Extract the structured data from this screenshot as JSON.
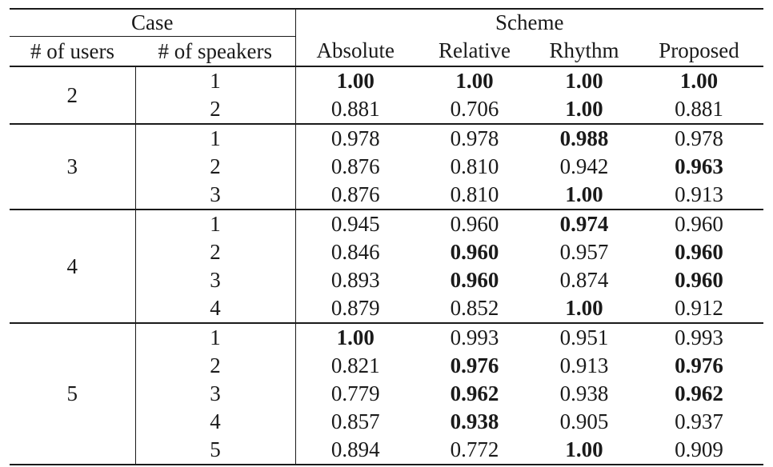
{
  "header": {
    "case_label": "Case",
    "scheme_label": "Scheme",
    "users_label": "# of users",
    "speakers_label": "# of speakers",
    "schemes": [
      "Absolute",
      "Relative",
      "Rhythm",
      "Proposed"
    ]
  },
  "groups": [
    {
      "users": "2",
      "rows": [
        {
          "speakers": "1",
          "values": [
            "1.00",
            "1.00",
            "1.00",
            "1.00"
          ],
          "bold": [
            true,
            true,
            true,
            true
          ]
        },
        {
          "speakers": "2",
          "values": [
            "0.881",
            "0.706",
            "1.00",
            "0.881"
          ],
          "bold": [
            false,
            false,
            true,
            false
          ]
        }
      ]
    },
    {
      "users": "3",
      "rows": [
        {
          "speakers": "1",
          "values": [
            "0.978",
            "0.978",
            "0.988",
            "0.978"
          ],
          "bold": [
            false,
            false,
            true,
            false
          ]
        },
        {
          "speakers": "2",
          "values": [
            "0.876",
            "0.810",
            "0.942",
            "0.963"
          ],
          "bold": [
            false,
            false,
            false,
            true
          ]
        },
        {
          "speakers": "3",
          "values": [
            "0.876",
            "0.810",
            "1.00",
            "0.913"
          ],
          "bold": [
            false,
            false,
            true,
            false
          ]
        }
      ]
    },
    {
      "users": "4",
      "rows": [
        {
          "speakers": "1",
          "values": [
            "0.945",
            "0.960",
            "0.974",
            "0.960"
          ],
          "bold": [
            false,
            false,
            true,
            false
          ]
        },
        {
          "speakers": "2",
          "values": [
            "0.846",
            "0.960",
            "0.957",
            "0.960"
          ],
          "bold": [
            false,
            true,
            false,
            true
          ]
        },
        {
          "speakers": "3",
          "values": [
            "0.893",
            "0.960",
            "0.874",
            "0.960"
          ],
          "bold": [
            false,
            true,
            false,
            true
          ]
        },
        {
          "speakers": "4",
          "values": [
            "0.879",
            "0.852",
            "1.00",
            "0.912"
          ],
          "bold": [
            false,
            false,
            true,
            false
          ]
        }
      ]
    },
    {
      "users": "5",
      "rows": [
        {
          "speakers": "1",
          "values": [
            "1.00",
            "0.993",
            "0.951",
            "0.993"
          ],
          "bold": [
            true,
            false,
            false,
            false
          ]
        },
        {
          "speakers": "2",
          "values": [
            "0.821",
            "0.976",
            "0.913",
            "0.976"
          ],
          "bold": [
            false,
            true,
            false,
            true
          ]
        },
        {
          "speakers": "3",
          "values": [
            "0.779",
            "0.962",
            "0.938",
            "0.962"
          ],
          "bold": [
            false,
            true,
            false,
            true
          ]
        },
        {
          "speakers": "4",
          "values": [
            "0.857",
            "0.938",
            "0.905",
            "0.937"
          ],
          "bold": [
            false,
            true,
            false,
            false
          ]
        },
        {
          "speakers": "5",
          "values": [
            "0.894",
            "0.772",
            "1.00",
            "0.909"
          ],
          "bold": [
            false,
            false,
            true,
            false
          ]
        }
      ]
    }
  ]
}
